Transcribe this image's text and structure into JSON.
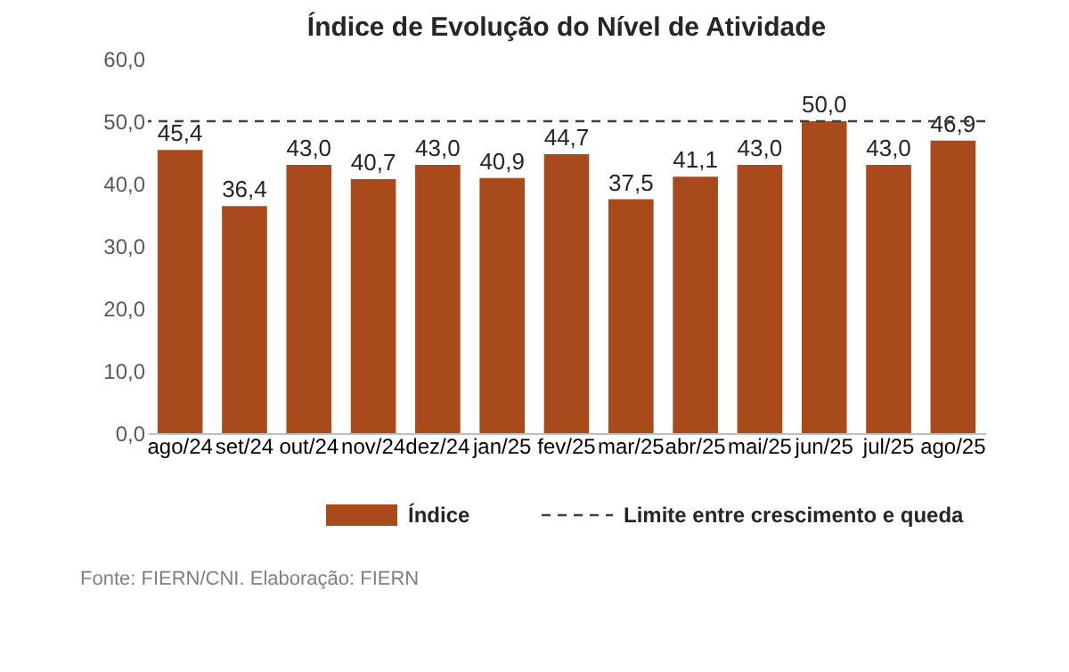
{
  "chart_data": {
    "type": "bar",
    "title": "Índice de Evolução do Nível de Atividade",
    "categories": [
      "ago/24",
      "set/24",
      "out/24",
      "nov/24",
      "dez/24",
      "jan/25",
      "fev/25",
      "mar/25",
      "abr/25",
      "mai/25",
      "jun/25",
      "jul/25",
      "ago/25"
    ],
    "series": [
      {
        "name": "Índice",
        "color": "#a84a1c",
        "values": [
          45.4,
          36.4,
          43.0,
          40.7,
          43.0,
          40.9,
          44.7,
          37.5,
          41.1,
          43.0,
          50.0,
          43.0,
          46.9
        ],
        "value_labels": [
          "45,4",
          "36,4",
          "43,0",
          "40,7",
          "43,0",
          "40,9",
          "44,7",
          "37,5",
          "41,1",
          "43,0",
          "50,0",
          "43,0",
          "46,9"
        ]
      }
    ],
    "ylim": [
      0,
      60
    ],
    "yticks": [
      {
        "value": 0,
        "label": "0,0"
      },
      {
        "value": 10,
        "label": "10,0"
      },
      {
        "value": 20,
        "label": "20,0"
      },
      {
        "value": 30,
        "label": "30,0"
      },
      {
        "value": 40,
        "label": "40,0"
      },
      {
        "value": 50,
        "label": "50,0"
      },
      {
        "value": 60,
        "label": "60,0"
      }
    ],
    "ref_lines": [
      {
        "axis": "y",
        "value": 50,
        "label": "Limite entre crescimento e queda",
        "color": "#404040",
        "line_style": "dashed"
      }
    ],
    "grid": false,
    "legend": "bottom",
    "annotations": [
      "Fonte: FIERN/CNI. Elaboração: FIERN"
    ]
  }
}
